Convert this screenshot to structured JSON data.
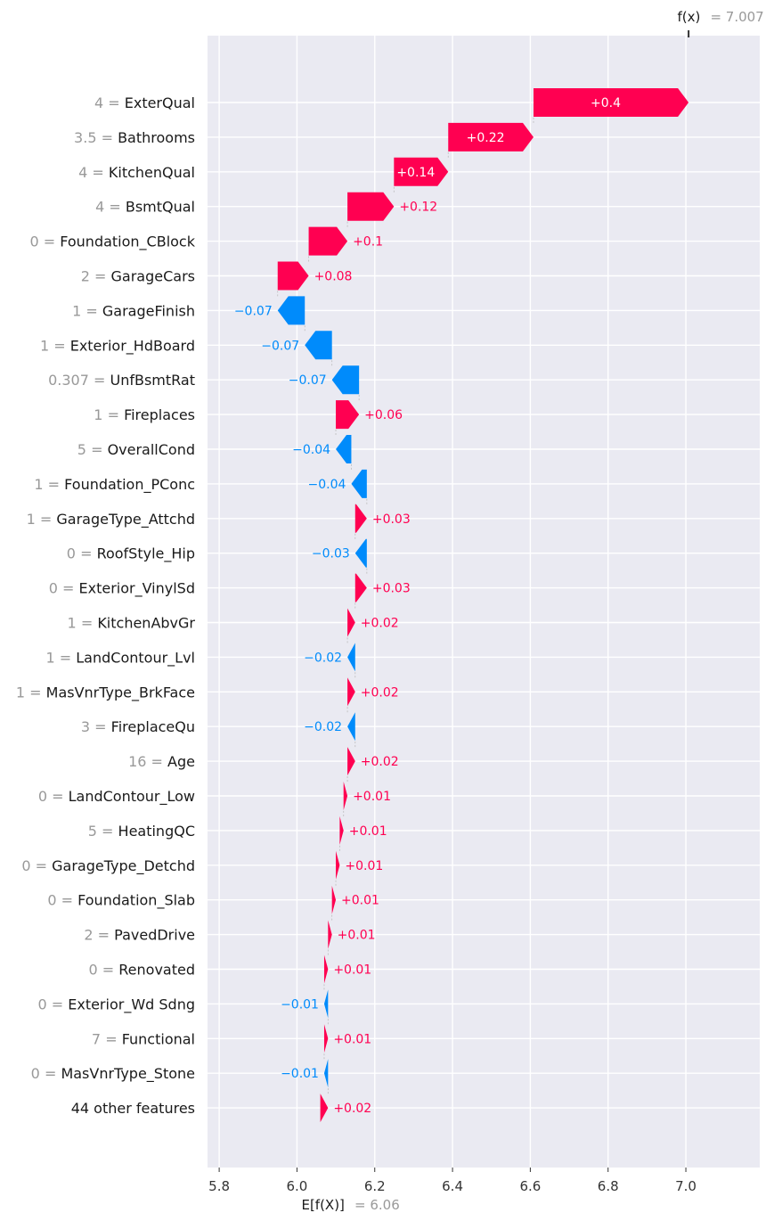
{
  "chart_data": {
    "type": "waterfall",
    "base_value": 6.06,
    "output_value": 7.007,
    "base_label": "E[f(X)]",
    "base_value_text": "= 6.06",
    "output_label": "f(x)",
    "output_value_text": "= 7.007",
    "xlim": [
      5.77,
      7.19
    ],
    "x_ticks": [
      5.8,
      6.0,
      6.2,
      6.4,
      6.6,
      6.8,
      7.0
    ],
    "x_tick_labels": [
      "5.8",
      "6.0",
      "6.2",
      "6.4",
      "6.6",
      "6.8",
      "7.0"
    ],
    "grid": true,
    "colors": {
      "positive": "#ff0051",
      "negative": "#008bfb",
      "background": "#eaeaf2"
    },
    "features": [
      {
        "value": "4",
        "name": "ExterQual",
        "contribution": 0.4,
        "label": "+0.4"
      },
      {
        "value": "3.5",
        "name": "Bathrooms",
        "contribution": 0.22,
        "label": "+0.22"
      },
      {
        "value": "4",
        "name": "KitchenQual",
        "contribution": 0.14,
        "label": "+0.14"
      },
      {
        "value": "4",
        "name": "BsmtQual",
        "contribution": 0.12,
        "label": "+0.12"
      },
      {
        "value": "0",
        "name": "Foundation_CBlock",
        "contribution": 0.1,
        "label": "+0.1"
      },
      {
        "value": "2",
        "name": "GarageCars",
        "contribution": 0.08,
        "label": "+0.08"
      },
      {
        "value": "1",
        "name": "GarageFinish",
        "contribution": -0.07,
        "label": "−0.07"
      },
      {
        "value": "1",
        "name": "Exterior_HdBoard",
        "contribution": -0.07,
        "label": "−0.07"
      },
      {
        "value": "0.307",
        "name": "UnfBsmtRat",
        "contribution": -0.07,
        "label": "−0.07"
      },
      {
        "value": "1",
        "name": "Fireplaces",
        "contribution": 0.06,
        "label": "+0.06"
      },
      {
        "value": "5",
        "name": "OverallCond",
        "contribution": -0.04,
        "label": "−0.04"
      },
      {
        "value": "1",
        "name": "Foundation_PConc",
        "contribution": -0.04,
        "label": "−0.04"
      },
      {
        "value": "1",
        "name": "GarageType_Attchd",
        "contribution": 0.03,
        "label": "+0.03"
      },
      {
        "value": "0",
        "name": "RoofStyle_Hip",
        "contribution": -0.03,
        "label": "−0.03"
      },
      {
        "value": "0",
        "name": "Exterior_VinylSd",
        "contribution": 0.03,
        "label": "+0.03"
      },
      {
        "value": "1",
        "name": "KitchenAbvGr",
        "contribution": 0.02,
        "label": "+0.02"
      },
      {
        "value": "1",
        "name": "LandContour_Lvl",
        "contribution": -0.02,
        "label": "−0.02"
      },
      {
        "value": "1",
        "name": "MasVnrType_BrkFace",
        "contribution": 0.02,
        "label": "+0.02"
      },
      {
        "value": "3",
        "name": "FireplaceQu",
        "contribution": -0.02,
        "label": "−0.02"
      },
      {
        "value": "16",
        "name": "Age",
        "contribution": 0.02,
        "label": "+0.02"
      },
      {
        "value": "0",
        "name": "LandContour_Low",
        "contribution": 0.01,
        "label": "+0.01"
      },
      {
        "value": "5",
        "name": "HeatingQC",
        "contribution": 0.01,
        "label": "+0.01"
      },
      {
        "value": "0",
        "name": "GarageType_Detchd",
        "contribution": 0.01,
        "label": "+0.01"
      },
      {
        "value": "0",
        "name": "Foundation_Slab",
        "contribution": 0.01,
        "label": "+0.01"
      },
      {
        "value": "2",
        "name": "PavedDrive",
        "contribution": 0.01,
        "label": "+0.01"
      },
      {
        "value": "0",
        "name": "Renovated",
        "contribution": 0.01,
        "label": "+0.01"
      },
      {
        "value": "0",
        "name": "Exterior_Wd Sdng",
        "contribution": -0.01,
        "label": "−0.01"
      },
      {
        "value": "7",
        "name": "Functional",
        "contribution": 0.01,
        "label": "+0.01"
      },
      {
        "value": "0",
        "name": "MasVnrType_Stone",
        "contribution": -0.01,
        "label": "−0.01"
      },
      {
        "value": "",
        "name": "44 other features",
        "contribution": 0.02,
        "label": "+0.02"
      }
    ]
  }
}
